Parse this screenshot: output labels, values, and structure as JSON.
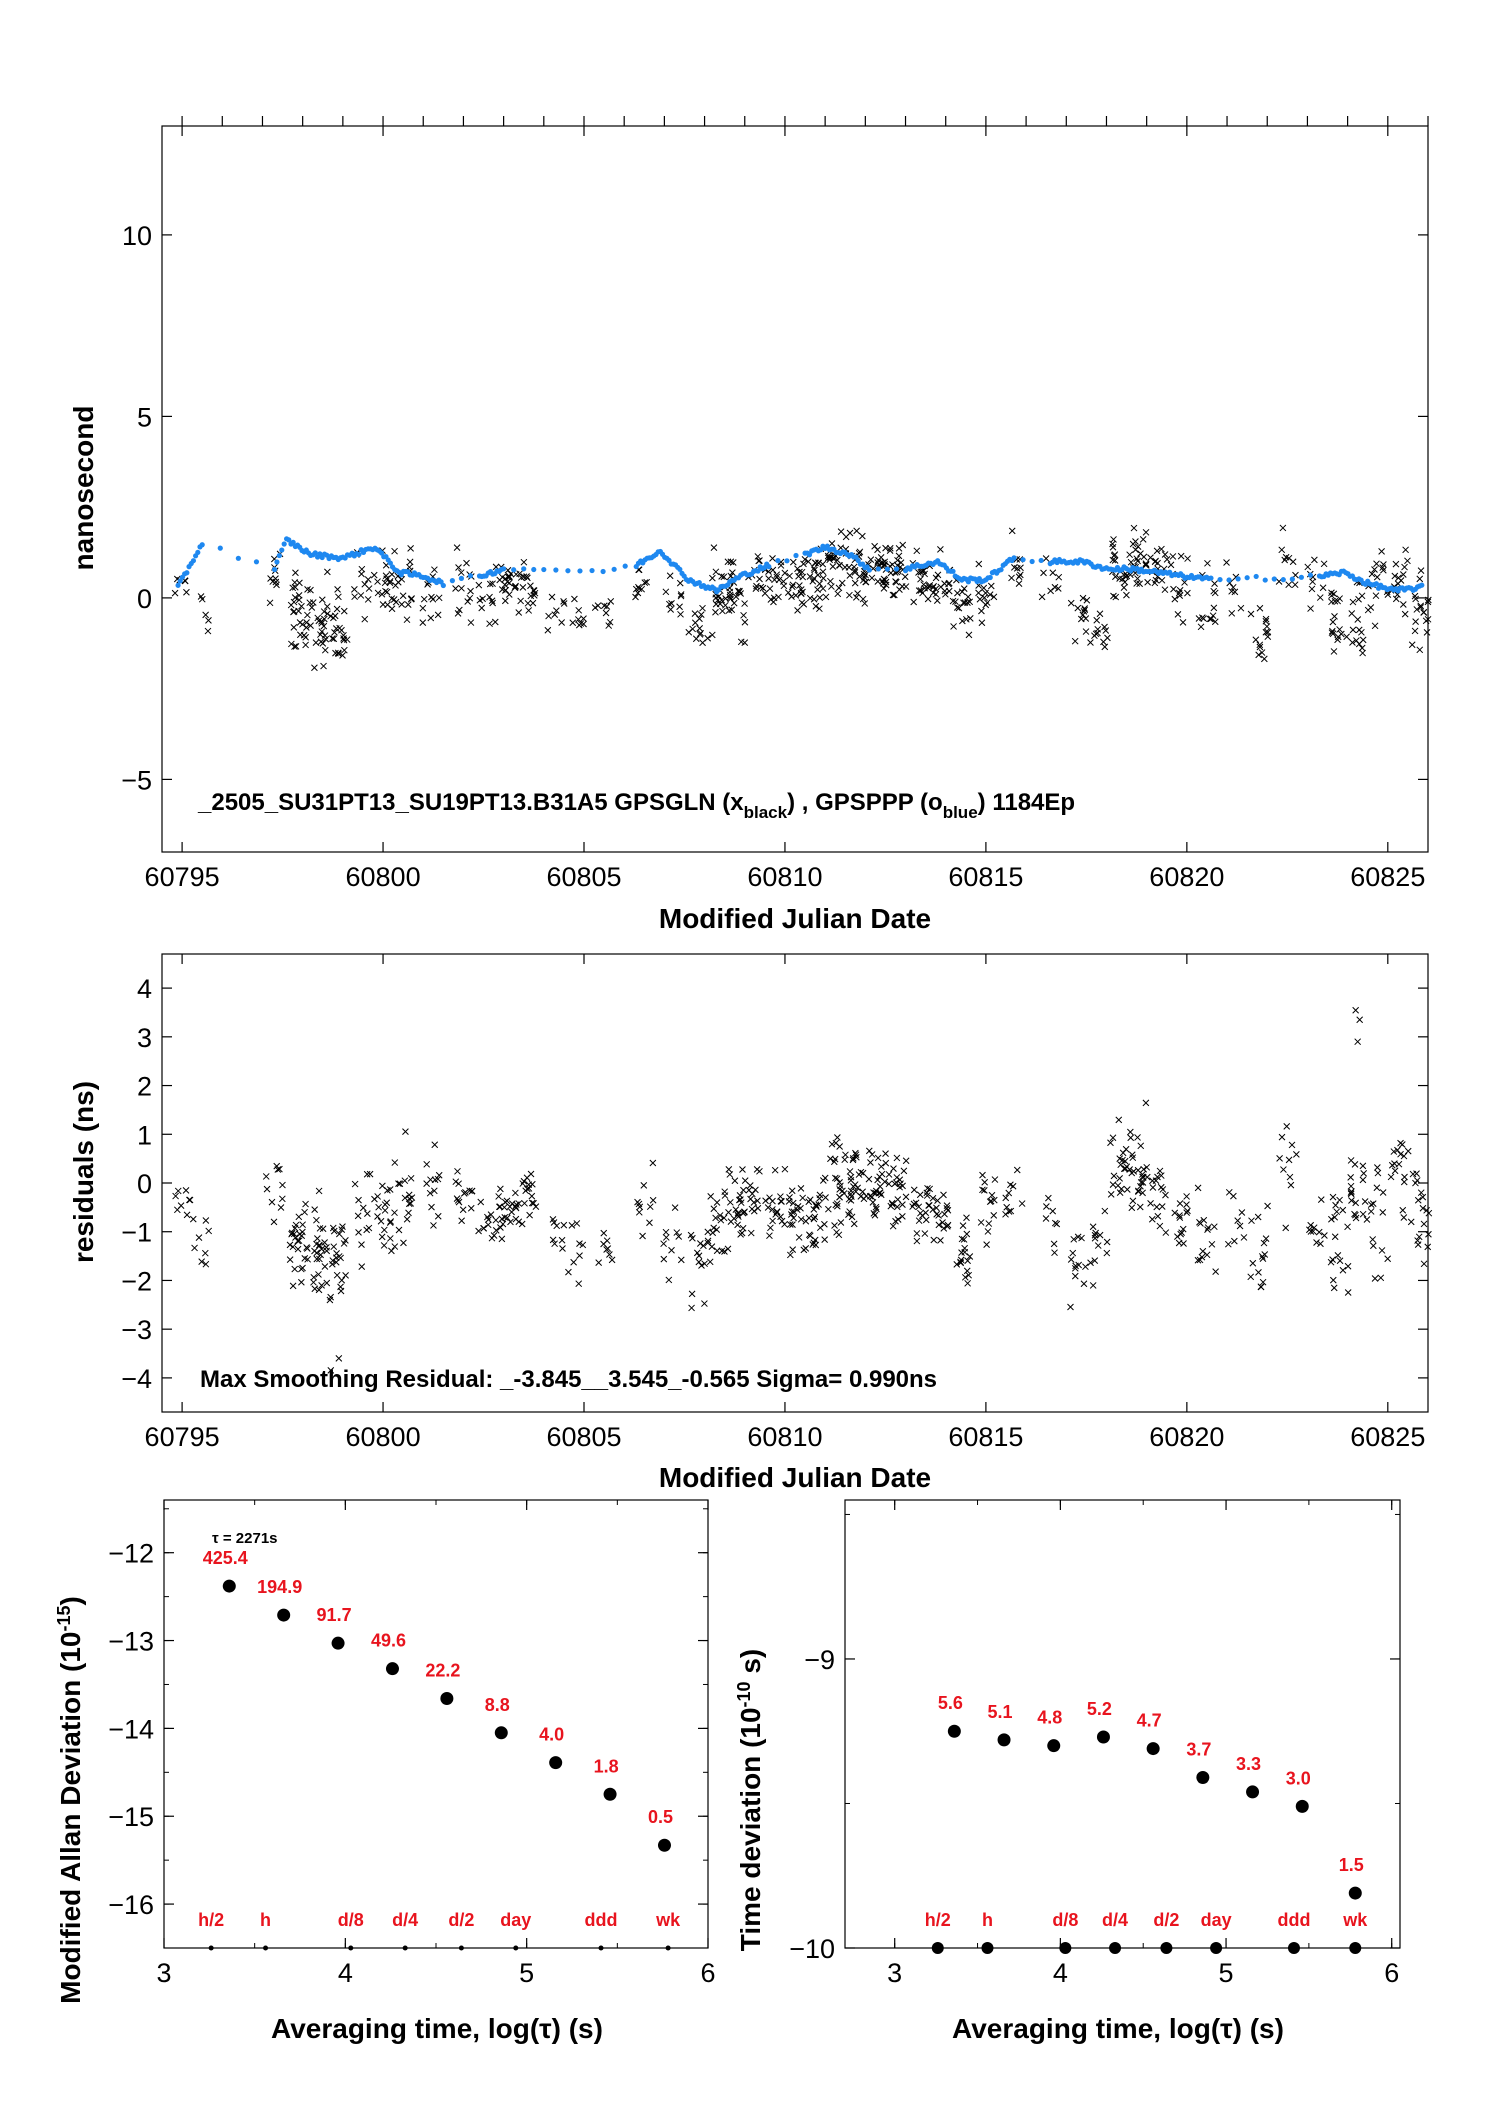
{
  "colors": {
    "black_series": "#000000",
    "blue_series": "#1e88f0",
    "label_red": "#e8141e"
  },
  "chart_data": [
    {
      "id": "timeseries",
      "type": "scatter",
      "xlabel": "Modified Julian Date",
      "ylabel": "nanosecond",
      "xlim": [
        60794.5,
        60826
      ],
      "ylim": [
        -7,
        13
      ],
      "x_ticks": [
        60795,
        60800,
        60805,
        60810,
        60815,
        60820,
        60825
      ],
      "y_ticks": [
        -5,
        0,
        5,
        10
      ],
      "annotation": {
        "prefix": "_2505_SU31PT13_SU19PT13.B31A5     GPSGLN (x",
        "sub1": "black",
        "mid": ") ,  GPSPPP (o",
        "sub2": "blue",
        "suffix": ")  1184Ep"
      },
      "series": [
        {
          "marker": "x",
          "color": "#000000",
          "clusters": [
            [
              60795.0,
              0.2,
              0.5,
              6
            ],
            [
              60795.5,
              -0.3,
              0.7,
              5
            ],
            [
              60797.3,
              0.6,
              0.9,
              10
            ],
            [
              60797.9,
              -0.5,
              1.0,
              28
            ],
            [
              60798.4,
              -0.6,
              1.1,
              26
            ],
            [
              60798.9,
              -0.9,
              1.0,
              22
            ],
            [
              60799.5,
              0.5,
              1.0,
              12
            ],
            [
              60800.0,
              0.2,
              0.9,
              18
            ],
            [
              60800.5,
              0.4,
              1.1,
              18
            ],
            [
              60801.2,
              0.2,
              0.8,
              12
            ],
            [
              60802.0,
              0.4,
              0.9,
              14
            ],
            [
              60802.6,
              0.1,
              0.7,
              12
            ],
            [
              60803.1,
              0.4,
              0.6,
              22
            ],
            [
              60803.6,
              0.2,
              0.7,
              18
            ],
            [
              60804.3,
              -0.3,
              0.5,
              8
            ],
            [
              60804.8,
              -0.4,
              0.6,
              8
            ],
            [
              60805.5,
              -0.4,
              0.5,
              8
            ],
            [
              60806.5,
              0.5,
              0.6,
              10
            ],
            [
              60807.2,
              0.0,
              0.7,
              10
            ],
            [
              60807.8,
              -0.8,
              0.8,
              12
            ],
            [
              60808.3,
              0.0,
              1.0,
              20
            ],
            [
              60808.8,
              0.1,
              1.0,
              26
            ],
            [
              60809.3,
              0.7,
              0.7,
              14
            ],
            [
              60809.8,
              0.6,
              0.8,
              18
            ],
            [
              60810.3,
              0.3,
              0.8,
              22
            ],
            [
              60810.8,
              0.6,
              0.8,
              24
            ],
            [
              60811.3,
              0.9,
              0.9,
              26
            ],
            [
              60811.8,
              0.8,
              0.9,
              28
            ],
            [
              60812.3,
              0.8,
              0.8,
              26
            ],
            [
              60812.8,
              0.6,
              0.7,
              24
            ],
            [
              60813.4,
              0.4,
              0.7,
              20
            ],
            [
              60813.9,
              0.3,
              0.8,
              18
            ],
            [
              60814.4,
              -0.4,
              0.8,
              18
            ],
            [
              60815.0,
              0.3,
              0.9,
              14
            ],
            [
              60815.7,
              0.8,
              0.8,
              10
            ],
            [
              60816.6,
              0.6,
              0.7,
              8
            ],
            [
              60817.3,
              -0.4,
              0.8,
              12
            ],
            [
              60817.8,
              -0.7,
              0.8,
              12
            ],
            [
              60818.3,
              0.8,
              0.8,
              20
            ],
            [
              60818.8,
              1.0,
              0.8,
              26
            ],
            [
              60819.3,
              0.8,
              0.8,
              16
            ],
            [
              60819.8,
              0.3,
              0.8,
              14
            ],
            [
              60820.5,
              -0.2,
              0.9,
              14
            ],
            [
              60821.2,
              0.2,
              0.6,
              8
            ],
            [
              60821.8,
              -1.0,
              0.9,
              14
            ],
            [
              60822.5,
              1.0,
              0.8,
              10
            ],
            [
              60823.2,
              0.5,
              0.8,
              10
            ],
            [
              60823.8,
              -0.6,
              1.0,
              18
            ],
            [
              60824.3,
              -0.5,
              1.0,
              18
            ],
            [
              60824.8,
              0.2,
              1.0,
              14
            ],
            [
              60825.3,
              0.5,
              0.9,
              16
            ],
            [
              60825.8,
              -0.2,
              1.0,
              18
            ]
          ]
        },
        {
          "marker": "o",
          "color": "#1e88f0",
          "trend": [
            [
              60794.9,
              0.3
            ],
            [
              60795.5,
              1.5
            ],
            [
              60797.3,
              0.8
            ],
            [
              60797.6,
              1.6
            ],
            [
              60798.2,
              1.2
            ],
            [
              60799.0,
              1.1
            ],
            [
              60799.8,
              1.4
            ],
            [
              60800.4,
              0.7
            ],
            [
              60801.0,
              0.6
            ],
            [
              60801.5,
              0.4
            ],
            [
              60802.4,
              0.6
            ],
            [
              60803.0,
              0.8
            ],
            [
              60804.0,
              0.8
            ],
            [
              60805.2,
              0.7
            ],
            [
              60806.3,
              0.9
            ],
            [
              60806.9,
              1.3
            ],
            [
              60807.6,
              0.5
            ],
            [
              60808.3,
              0.2
            ],
            [
              60808.9,
              0.6
            ],
            [
              60809.6,
              0.9
            ],
            [
              60810.5,
              1.2
            ],
            [
              60811.0,
              1.4
            ],
            [
              60811.6,
              1.2
            ],
            [
              60812.1,
              0.8
            ],
            [
              60813.0,
              0.8
            ],
            [
              60813.8,
              1.0
            ],
            [
              60814.4,
              0.5
            ],
            [
              60815.0,
              0.5
            ],
            [
              60815.7,
              1.1
            ],
            [
              60816.6,
              1.0
            ],
            [
              60817.4,
              1.0
            ],
            [
              60818.0,
              0.8
            ],
            [
              60818.6,
              0.8
            ],
            [
              60819.3,
              0.7
            ],
            [
              60819.9,
              0.6
            ],
            [
              60820.6,
              0.5
            ],
            [
              60821.5,
              0.6
            ],
            [
              60822.4,
              0.5
            ],
            [
              60823.3,
              0.6
            ],
            [
              60823.9,
              0.7
            ],
            [
              60824.5,
              0.4
            ],
            [
              60825.2,
              0.2
            ],
            [
              60825.9,
              0.3
            ]
          ]
        }
      ]
    },
    {
      "id": "residuals",
      "type": "scatter",
      "xlabel": "Modified Julian Date",
      "ylabel": "residuals (ns)",
      "xlim": [
        60794.5,
        60826
      ],
      "ylim": [
        -4.7,
        4.7
      ],
      "x_ticks": [
        60795,
        60800,
        60805,
        60810,
        60815,
        60820,
        60825
      ],
      "y_ticks": [
        -4,
        -3,
        -2,
        -1,
        0,
        1,
        2,
        3,
        4
      ],
      "annotation": "Max Smoothing Residual: _-3.845__3.545_-0.565  Sigma= 0.990ns",
      "series": [
        {
          "marker": "x",
          "color": "#000000",
          "clusters": [
            [
              60795.0,
              -0.3,
              0.6,
              8
            ],
            [
              60795.5,
              -1.2,
              0.9,
              8
            ],
            [
              60797.3,
              0.0,
              1.0,
              10
            ],
            [
              60797.9,
              -1.2,
              0.9,
              28
            ],
            [
              60798.4,
              -1.5,
              1.0,
              26
            ],
            [
              60798.9,
              -1.6,
              1.1,
              22
            ],
            [
              60799.5,
              -0.5,
              0.9,
              12
            ],
            [
              60800.0,
              -0.6,
              0.8,
              18
            ],
            [
              60800.5,
              -0.3,
              1.0,
              18
            ],
            [
              60801.2,
              0.0,
              0.8,
              12
            ],
            [
              60802.0,
              -0.3,
              0.8,
              14
            ],
            [
              60802.6,
              -0.7,
              0.6,
              12
            ],
            [
              60803.1,
              -0.5,
              0.6,
              22
            ],
            [
              60803.6,
              -0.2,
              0.7,
              18
            ],
            [
              60804.3,
              -1.2,
              0.5,
              8
            ],
            [
              60804.8,
              -1.4,
              0.6,
              8
            ],
            [
              60805.5,
              -1.4,
              0.5,
              8
            ],
            [
              60806.5,
              -0.5,
              0.6,
              10
            ],
            [
              60807.2,
              -1.2,
              0.7,
              10
            ],
            [
              60807.8,
              -1.5,
              0.8,
              12
            ],
            [
              60808.3,
              -0.8,
              1.0,
              20
            ],
            [
              60808.8,
              -0.6,
              1.0,
              26
            ],
            [
              60809.3,
              -0.2,
              0.7,
              14
            ],
            [
              60809.8,
              -0.6,
              0.8,
              18
            ],
            [
              60810.3,
              -0.8,
              0.8,
              22
            ],
            [
              60810.8,
              -0.4,
              0.8,
              24
            ],
            [
              60811.3,
              0.0,
              0.9,
              26
            ],
            [
              60811.8,
              0.1,
              0.9,
              28
            ],
            [
              60812.3,
              0.0,
              0.8,
              26
            ],
            [
              60812.8,
              -0.2,
              0.7,
              24
            ],
            [
              60813.4,
              -0.4,
              0.7,
              20
            ],
            [
              60813.9,
              -0.8,
              0.8,
              18
            ],
            [
              60814.4,
              -1.4,
              0.8,
              18
            ],
            [
              60815.0,
              -0.6,
              0.9,
              14
            ],
            [
              60815.7,
              -0.4,
              0.8,
              10
            ],
            [
              60816.6,
              -0.8,
              0.7,
              8
            ],
            [
              60817.3,
              -1.8,
              0.8,
              12
            ],
            [
              60817.8,
              -1.4,
              0.8,
              12
            ],
            [
              60818.3,
              0.2,
              0.8,
              20
            ],
            [
              60818.8,
              0.4,
              0.8,
              26
            ],
            [
              60819.3,
              -0.4,
              0.8,
              16
            ],
            [
              60819.8,
              -0.8,
              0.8,
              14
            ],
            [
              60820.5,
              -1.2,
              0.9,
              14
            ],
            [
              60821.2,
              -0.8,
              0.6,
              8
            ],
            [
              60821.8,
              -1.5,
              0.9,
              14
            ],
            [
              60822.5,
              0.4,
              0.8,
              10
            ],
            [
              60823.2,
              -0.7,
              0.8,
              10
            ],
            [
              60823.8,
              -1.2,
              1.0,
              18
            ],
            [
              60824.3,
              -0.2,
              1.0,
              18
            ],
            [
              60824.8,
              -0.9,
              1.0,
              14
            ],
            [
              60825.3,
              0.3,
              0.9,
              16
            ],
            [
              60825.8,
              -0.6,
              1.0,
              18
            ]
          ],
          "extremes": [
            [
              60824.2,
              3.545
            ],
            [
              60824.3,
              3.35
            ],
            [
              60824.25,
              2.9
            ],
            [
              60798.7,
              -3.845
            ],
            [
              60798.9,
              -3.6
            ]
          ]
        }
      ]
    },
    {
      "id": "mdev",
      "type": "scatter",
      "xlabel": "Averaging time, log(τ) (s)",
      "ylabel_main": "Modified Allan Deviation (10",
      "ylabel_sup": "-15",
      "ylabel_end": ")",
      "tau_note": "τ = 2271s",
      "xlim": [
        3,
        6
      ],
      "ylim": [
        -16.5,
        -11.4
      ],
      "x_ticks": [
        3,
        4,
        5,
        6
      ],
      "y_ticks": [
        -16,
        -15,
        -14,
        -13,
        -12
      ],
      "x": [
        3.36,
        3.66,
        3.96,
        4.26,
        4.56,
        4.86,
        5.16,
        5.46,
        5.76
      ],
      "values": [
        -12.38,
        -12.71,
        -13.03,
        -13.32,
        -13.66,
        -14.05,
        -14.39,
        -14.75,
        -15.33
      ],
      "point_labels": [
        "425.4",
        "194.9",
        "91.7",
        "49.6",
        "22.2",
        "8.8",
        "4.0",
        "1.8",
        "0.5"
      ],
      "markers": [
        {
          "label": "h/2",
          "x": 3.26
        },
        {
          "label": "h",
          "x": 3.56
        },
        {
          "label": "d/8",
          "x": 4.03
        },
        {
          "label": "d/4",
          "x": 4.33
        },
        {
          "label": "d/2",
          "x": 4.64
        },
        {
          "label": "day",
          "x": 4.94
        },
        {
          "label": "ddd",
          "x": 5.41
        },
        {
          "label": "wk",
          "x": 5.78
        }
      ]
    },
    {
      "id": "tdev",
      "type": "scatter",
      "xlabel": "Averaging time, log(τ) (s)",
      "ylabel_main": "Time deviation (10",
      "ylabel_sup": "-10",
      "ylabel_end": " s)",
      "xlim": [
        2.7,
        6.05
      ],
      "ylim": [
        -10,
        -8.45
      ],
      "x_ticks": [
        3,
        4,
        5,
        6
      ],
      "y_ticks": [
        -10,
        -9
      ],
      "x": [
        3.36,
        3.66,
        3.96,
        4.26,
        4.56,
        4.86,
        5.16,
        5.46,
        5.78
      ],
      "values": [
        -9.25,
        -9.28,
        -9.3,
        -9.27,
        -9.31,
        -9.41,
        -9.46,
        -9.51,
        -9.81
      ],
      "point_labels": [
        "5.6",
        "5.1",
        "4.8",
        "5.2",
        "4.7",
        "3.7",
        "3.3",
        "3.0",
        "1.5"
      ],
      "markers": [
        {
          "label": "h/2",
          "x": 3.26
        },
        {
          "label": "h",
          "x": 3.56
        },
        {
          "label": "d/8",
          "x": 4.03
        },
        {
          "label": "d/4",
          "x": 4.33
        },
        {
          "label": "d/2",
          "x": 4.64
        },
        {
          "label": "day",
          "x": 4.94
        },
        {
          "label": "ddd",
          "x": 5.41
        },
        {
          "label": "wk",
          "x": 5.78
        }
      ]
    }
  ]
}
